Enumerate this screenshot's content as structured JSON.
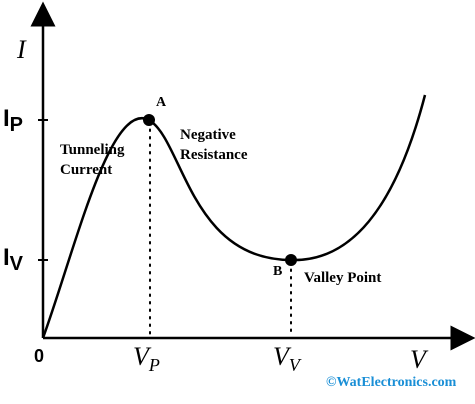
{
  "axes": {
    "y_label": "I",
    "x_label": "V",
    "origin_label": "0"
  },
  "y_ticks": {
    "peak_main": "I",
    "peak_sub": "P",
    "valley_main": "I",
    "valley_sub": "V"
  },
  "x_ticks": {
    "peak_main": "V",
    "peak_sub": "P",
    "valley_main": "V",
    "valley_sub": "V"
  },
  "points": {
    "peak_label": "A",
    "valley_label": "B"
  },
  "annotations": {
    "tunneling_line1": "Tunneling",
    "tunneling_line2": "Current",
    "negative_line1": "Negative",
    "negative_line2": "Resistance",
    "valley_point": "Valley Point"
  },
  "credit": "©WatElectronics.com",
  "colors": {
    "curve": "#000000",
    "credit": "#1a8fd6"
  }
}
